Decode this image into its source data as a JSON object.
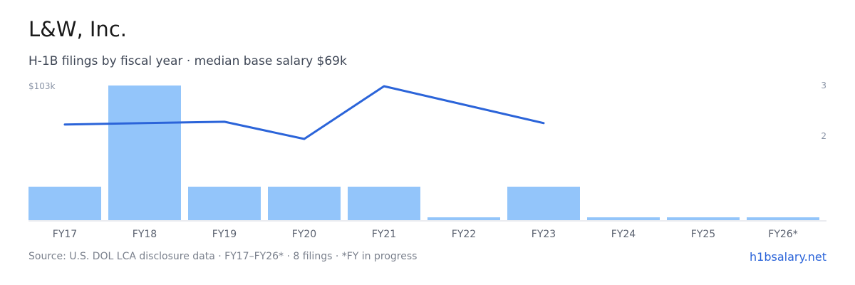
{
  "header": {
    "title": "L&W, Inc.",
    "subtitle": "H-1B filings by fiscal year · median base salary $69k"
  },
  "chart_data": {
    "type": "bar",
    "categories": [
      "FY17",
      "FY18",
      "FY19",
      "FY20",
      "FY21",
      "FY22",
      "FY23",
      "FY24",
      "FY25",
      "FY26*"
    ],
    "series": [
      {
        "type": "bar",
        "axis": "right",
        "values": [
          1,
          3,
          1,
          1,
          1,
          0,
          1,
          0,
          0,
          0
        ]
      },
      {
        "type": "line",
        "axis": "left",
        "values": [
          74,
          75,
          76,
          63,
          103,
          null,
          75,
          null,
          null,
          null
        ]
      }
    ],
    "left_axis": {
      "label": "$103k",
      "max": 103
    },
    "right_axis": {
      "ticks": [
        {
          "value": 3,
          "label": "3"
        },
        {
          "value": 2,
          "label": "2"
        }
      ]
    },
    "grid": false,
    "colors": {
      "bar": "#93c5fa",
      "line": "#2b64d9",
      "axis_text": "#8a94a6",
      "baseline": "#d6dae0"
    }
  },
  "footer": {
    "source": "Source: U.S. DOL LCA disclosure data · FY17–FY26* · 8 filings · *FY in progress",
    "brand": "h1bsalary.net"
  }
}
